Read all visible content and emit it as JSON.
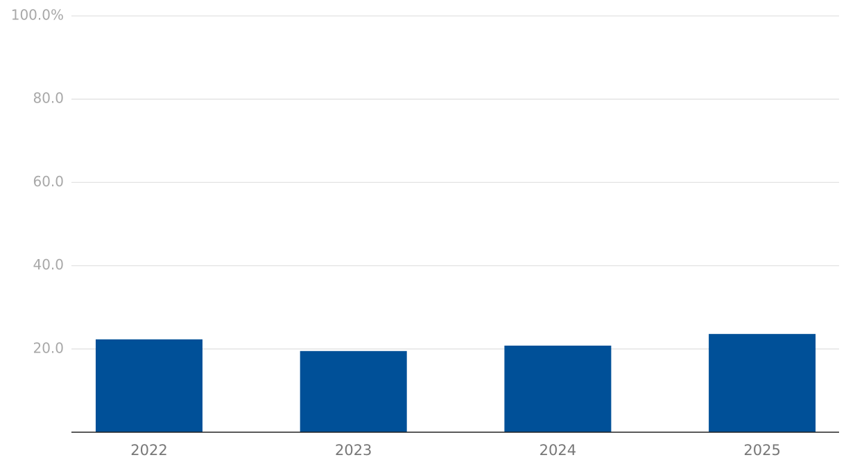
{
  "chart_data": {
    "type": "bar",
    "categories": [
      "2022",
      "2023",
      "2024",
      "2025"
    ],
    "values": [
      22.3,
      19.5,
      20.8,
      23.6
    ],
    "color": "#005098",
    "ylim": [
      0,
      100
    ],
    "yticks": [
      {
        "value": 20,
        "label": "20.0"
      },
      {
        "value": 40,
        "label": "40.0"
      },
      {
        "value": 60,
        "label": "60.0"
      },
      {
        "value": 80,
        "label": "80.0"
      },
      {
        "value": 100,
        "label": "100.0%"
      }
    ],
    "grid": true
  }
}
